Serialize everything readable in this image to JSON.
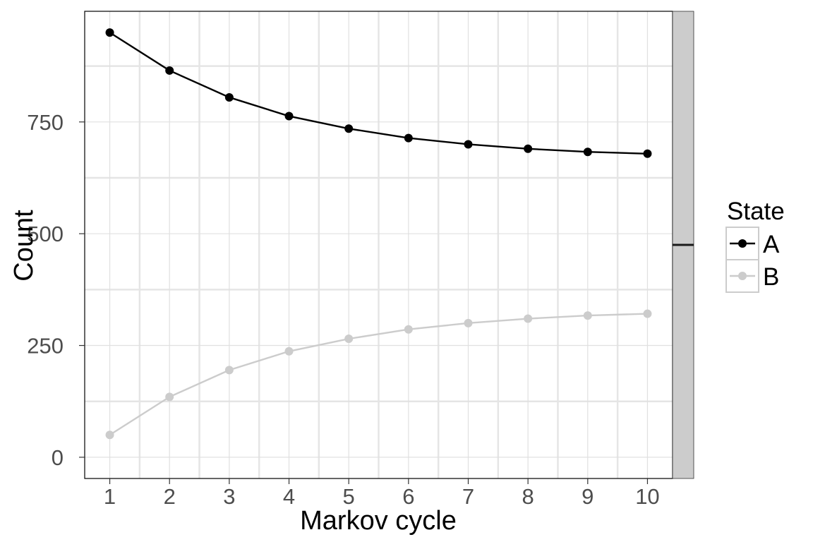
{
  "chart_data": {
    "type": "line",
    "xlabel": "Markov cycle",
    "ylabel": "Count",
    "x": [
      1,
      2,
      3,
      4,
      5,
      6,
      7,
      8,
      9,
      10
    ],
    "x_tick_labels": [
      "1",
      "2",
      "3",
      "4",
      "5",
      "6",
      "7",
      "8",
      "9",
      "10"
    ],
    "y_tick_labels": [
      "0",
      "250",
      "500",
      "750"
    ],
    "y_ticks": [
      0,
      250,
      500,
      750
    ],
    "xlim": [
      0.58,
      10.42
    ],
    "ylim": [
      -47.5,
      997.5
    ],
    "grid": true,
    "legend": {
      "title": "State",
      "position": "right"
    },
    "series": [
      {
        "name": "A",
        "color": "#000000",
        "values": [
          950,
          865,
          805,
          763,
          735,
          714,
          700,
          690,
          683,
          679
        ]
      },
      {
        "name": "B",
        "color": "#cccccc",
        "values": [
          50,
          135,
          195,
          237,
          265,
          286,
          300,
          310,
          317,
          321
        ]
      }
    ],
    "facet_strip": {
      "label": "",
      "marker_value": 475
    }
  }
}
